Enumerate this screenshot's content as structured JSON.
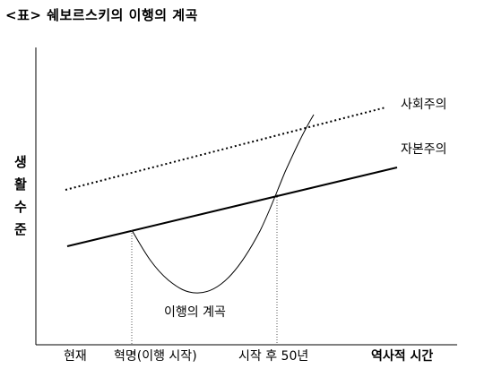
{
  "title": "<표> 쉐보르스키의 이행의 계곡",
  "y_axis_label": [
    "생",
    "활",
    "수",
    "준"
  ],
  "lines": {
    "socialism": "사회주의",
    "capitalism": "자본주의",
    "valley": "이행의 계곡"
  },
  "x_labels": {
    "present": "현재",
    "revolution": "혁명(이행 시작)",
    "after": "시작 후 50년",
    "historical_time": "역사적 시간"
  },
  "colors": {
    "line": "#000000",
    "dashed_guide": "#555555"
  }
}
